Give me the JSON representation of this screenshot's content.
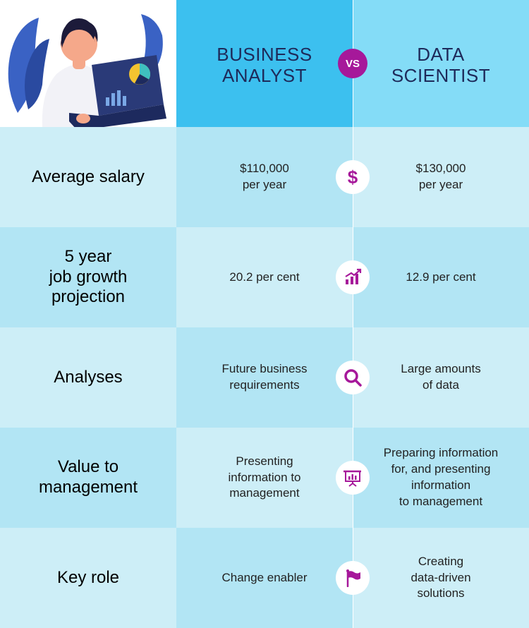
{
  "theme": {
    "header_bg_col1": "#3cc0ef",
    "header_bg_col2": "#84dcf7",
    "row_bg_a": "#cdeef7",
    "row_bg_b": "#b2e5f4",
    "accent_color": "#a6189a",
    "vs_bg": "#a6189a",
    "vs_text": "#ffffff",
    "header_text_color": "#1e2a5a",
    "label_text_color": "#000000",
    "value_text_color": "#222222",
    "divider_color": "#ffffff",
    "illustration": {
      "leaf": "#3a62c4",
      "leaf_dark": "#2a4aa0",
      "hair": "#1c1b3a",
      "skin": "#f5a88a",
      "shirt": "#f2f2f7",
      "laptop_body": "#1d2a5e",
      "laptop_screen": "#2a3a78",
      "chart_yellow": "#f4c430",
      "chart_teal": "#3fbfbf",
      "chart_bar": "#7aa8e6"
    }
  },
  "header": {
    "col1_title": "BUSINESS\nANALYST",
    "col2_title": "DATA\nSCIENTIST",
    "vs_label": "VS"
  },
  "rows": [
    {
      "label": "Average salary",
      "col1": "$110,000\nper year",
      "col2": "$130,000\nper year",
      "icon": "dollar"
    },
    {
      "label": "5 year\njob growth\nprojection",
      "col1": "20.2 per cent",
      "col2": "12.9 per cent",
      "icon": "growth"
    },
    {
      "label": "Analyses",
      "col1": "Future business\nrequirements",
      "col2": "Large amounts\nof data",
      "icon": "search"
    },
    {
      "label": "Value to\nmanagement",
      "col1": "Presenting\ninformation to\nmanagement",
      "col2": "Preparing information\nfor, and presenting\ninformation\nto management",
      "icon": "presentation"
    },
    {
      "label": "Key role",
      "col1": "Change enabler",
      "col2": "Creating\ndata-driven\nsolutions",
      "icon": "flag"
    }
  ]
}
